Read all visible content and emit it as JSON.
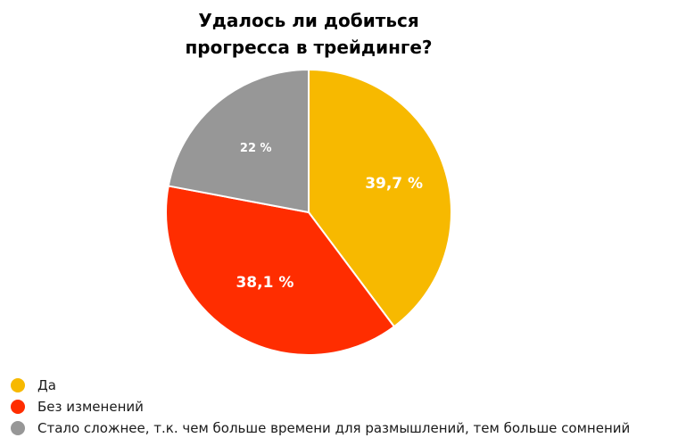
{
  "chart_data": {
    "type": "pie",
    "title_lines": [
      "Удалось ли добиться",
      "прогресса в трейдинге?"
    ],
    "categories": [
      "Да",
      "Без изменений",
      "Стало сложнее, т.к. чем больше времени для размышлений, тем больше сомнений"
    ],
    "values": [
      39.7,
      38.1,
      22
    ],
    "data_labels": [
      "39,7 %",
      "38,1 %",
      "22 %"
    ],
    "colors": [
      "#F7B900",
      "#FF2D00",
      "#979797"
    ],
    "start": "12 o'clock",
    "direction": "clockwise",
    "legend": "bottom-left"
  }
}
